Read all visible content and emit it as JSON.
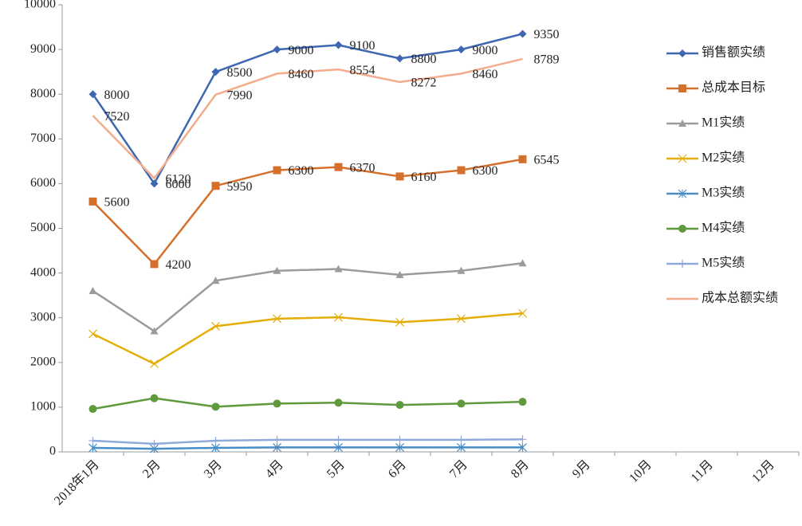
{
  "chart_data": {
    "type": "line",
    "categories": [
      "2018年1月",
      "2月",
      "3月",
      "4月",
      "5月",
      "6月",
      "7月",
      "8月",
      "9月",
      "10月",
      "11月",
      "12月"
    ],
    "ylim": [
      0,
      10000
    ],
    "yticks": [
      0,
      1000,
      2000,
      3000,
      4000,
      5000,
      6000,
      7000,
      8000,
      9000,
      10000
    ],
    "legend": "right",
    "series": [
      {
        "name": "销售额实绩",
        "color": "#3e67b1",
        "marker": "diamond",
        "data_labels": true,
        "values": [
          8000,
          6000,
          8500,
          9000,
          9100,
          8800,
          9000,
          9350,
          null,
          null,
          null,
          null
        ]
      },
      {
        "name": "总成本目标",
        "color": "#d5702c",
        "marker": "square",
        "data_labels": true,
        "values": [
          5600,
          4200,
          5950,
          6300,
          6370,
          6160,
          6300,
          6545,
          null,
          null,
          null,
          null
        ]
      },
      {
        "name": "M1实绩",
        "color": "#9b9b9b",
        "marker": "triangle",
        "values": [
          3600,
          2700,
          3830,
          4050,
          4090,
          3960,
          4050,
          4220,
          null,
          null,
          null,
          null
        ]
      },
      {
        "name": "M2实绩",
        "color": "#e5ae07",
        "marker": "x",
        "values": [
          2640,
          1970,
          2810,
          2980,
          3010,
          2900,
          2980,
          3100,
          null,
          null,
          null,
          null
        ]
      },
      {
        "name": "M3实绩",
        "color": "#4a8cc4",
        "marker": "asterisk",
        "values": [
          90,
          70,
          90,
          100,
          100,
          100,
          100,
          100,
          null,
          null,
          null,
          null
        ]
      },
      {
        "name": "M4实绩",
        "color": "#5f9a3c",
        "marker": "circle",
        "values": [
          960,
          1200,
          1010,
          1080,
          1100,
          1050,
          1080,
          1120,
          null,
          null,
          null,
          null
        ]
      },
      {
        "name": "M5实绩",
        "color": "#8eaadb",
        "marker": "plus",
        "values": [
          250,
          180,
          250,
          270,
          270,
          270,
          270,
          280,
          null,
          null,
          null,
          null
        ]
      },
      {
        "name": "成本总额实绩",
        "color": "#f3ad8c",
        "marker": "none",
        "data_labels": true,
        "values": [
          7520,
          6120,
          7990,
          8460,
          8554,
          8272,
          8460,
          8789,
          null,
          null,
          null,
          null
        ]
      }
    ]
  }
}
